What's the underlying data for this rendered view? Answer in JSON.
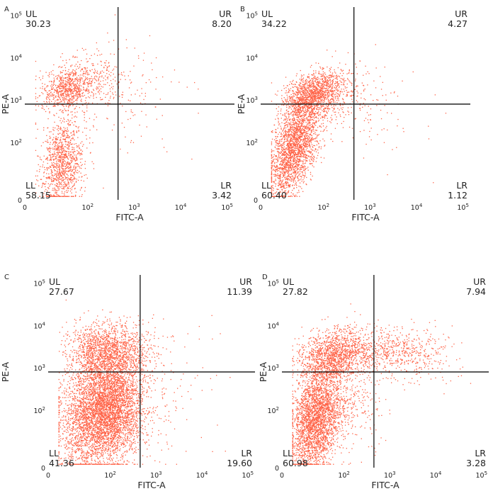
{
  "chart_data": [
    {
      "type": "scatter",
      "panel_label": "A",
      "xlabel": "FITC-A",
      "ylabel": "PE-A",
      "x_ticks": [
        {
          "base": "0",
          "exp": ""
        },
        {
          "base": "10",
          "exp": "2"
        },
        {
          "base": "10",
          "exp": "3"
        },
        {
          "base": "10",
          "exp": "4"
        },
        {
          "base": "10",
          "exp": "5"
        }
      ],
      "y_ticks": [
        {
          "base": "0",
          "exp": ""
        },
        {
          "base": "10",
          "exp": "2"
        },
        {
          "base": "10",
          "exp": "3"
        },
        {
          "base": "10",
          "exp": "4"
        },
        {
          "base": "10",
          "exp": "5"
        }
      ],
      "gate": {
        "x": 450,
        "y": 800
      },
      "quadrants": [
        {
          "name": "UL",
          "value": "30.23"
        },
        {
          "name": "UR",
          "value": "8.20"
        },
        {
          "name": "LL",
          "value": "58.15"
        },
        {
          "name": "LR",
          "value": "3.42"
        }
      ],
      "dot_color": "#ff6347"
    },
    {
      "type": "scatter",
      "panel_label": "B",
      "xlabel": "FITC-A",
      "ylabel": "PE-A",
      "x_ticks": [
        {
          "base": "0",
          "exp": ""
        },
        {
          "base": "10",
          "exp": "2"
        },
        {
          "base": "10",
          "exp": "3"
        },
        {
          "base": "10",
          "exp": "4"
        },
        {
          "base": "10",
          "exp": "5"
        }
      ],
      "y_ticks": [
        {
          "base": "0",
          "exp": ""
        },
        {
          "base": "10",
          "exp": "2"
        },
        {
          "base": "10",
          "exp": "3"
        },
        {
          "base": "10",
          "exp": "4"
        },
        {
          "base": "10",
          "exp": "5"
        }
      ],
      "gate": {
        "x": 450,
        "y": 800
      },
      "quadrants": [
        {
          "name": "UL",
          "value": "34.22"
        },
        {
          "name": "UR",
          "value": "4.27"
        },
        {
          "name": "LL",
          "value": "60.40"
        },
        {
          "name": "LR",
          "value": "1.12"
        }
      ],
      "dot_color": "#ff6347"
    },
    {
      "type": "scatter",
      "panel_label": "C",
      "xlabel": "FITC-A",
      "ylabel": "PE-A",
      "x_ticks": [
        {
          "base": "0",
          "exp": ""
        },
        {
          "base": "10",
          "exp": "2"
        },
        {
          "base": "10",
          "exp": "3"
        },
        {
          "base": "10",
          "exp": "4"
        },
        {
          "base": "10",
          "exp": "5"
        }
      ],
      "y_ticks": [
        {
          "base": "0",
          "exp": ""
        },
        {
          "base": "10",
          "exp": "2"
        },
        {
          "base": "10",
          "exp": "3"
        },
        {
          "base": "10",
          "exp": "4"
        },
        {
          "base": "10",
          "exp": "5"
        }
      ],
      "gate": {
        "x": 450,
        "y": 800
      },
      "quadrants": [
        {
          "name": "UL",
          "value": "27.67"
        },
        {
          "name": "UR",
          "value": "11.39"
        },
        {
          "name": "LL",
          "value": "41.36"
        },
        {
          "name": "LR",
          "value": "19.60"
        }
      ],
      "dot_color": "#ff6347"
    },
    {
      "type": "scatter",
      "panel_label": "D",
      "xlabel": "FITC-A",
      "ylabel": "PE-A",
      "x_ticks": [
        {
          "base": "0",
          "exp": ""
        },
        {
          "base": "10",
          "exp": "2"
        },
        {
          "base": "10",
          "exp": "3"
        },
        {
          "base": "10",
          "exp": "4"
        },
        {
          "base": "10",
          "exp": "5"
        }
      ],
      "y_ticks": [
        {
          "base": "0",
          "exp": ""
        },
        {
          "base": "10",
          "exp": "2"
        },
        {
          "base": "10",
          "exp": "3"
        },
        {
          "base": "10",
          "exp": "4"
        },
        {
          "base": "10",
          "exp": "5"
        }
      ],
      "gate": {
        "x": 450,
        "y": 800
      },
      "quadrants": [
        {
          "name": "UL",
          "value": "27.82"
        },
        {
          "name": "UR",
          "value": "7.94"
        },
        {
          "name": "LL",
          "value": "60.98"
        },
        {
          "name": "LR",
          "value": "3.28"
        }
      ],
      "dot_color": "#ff6347"
    }
  ]
}
